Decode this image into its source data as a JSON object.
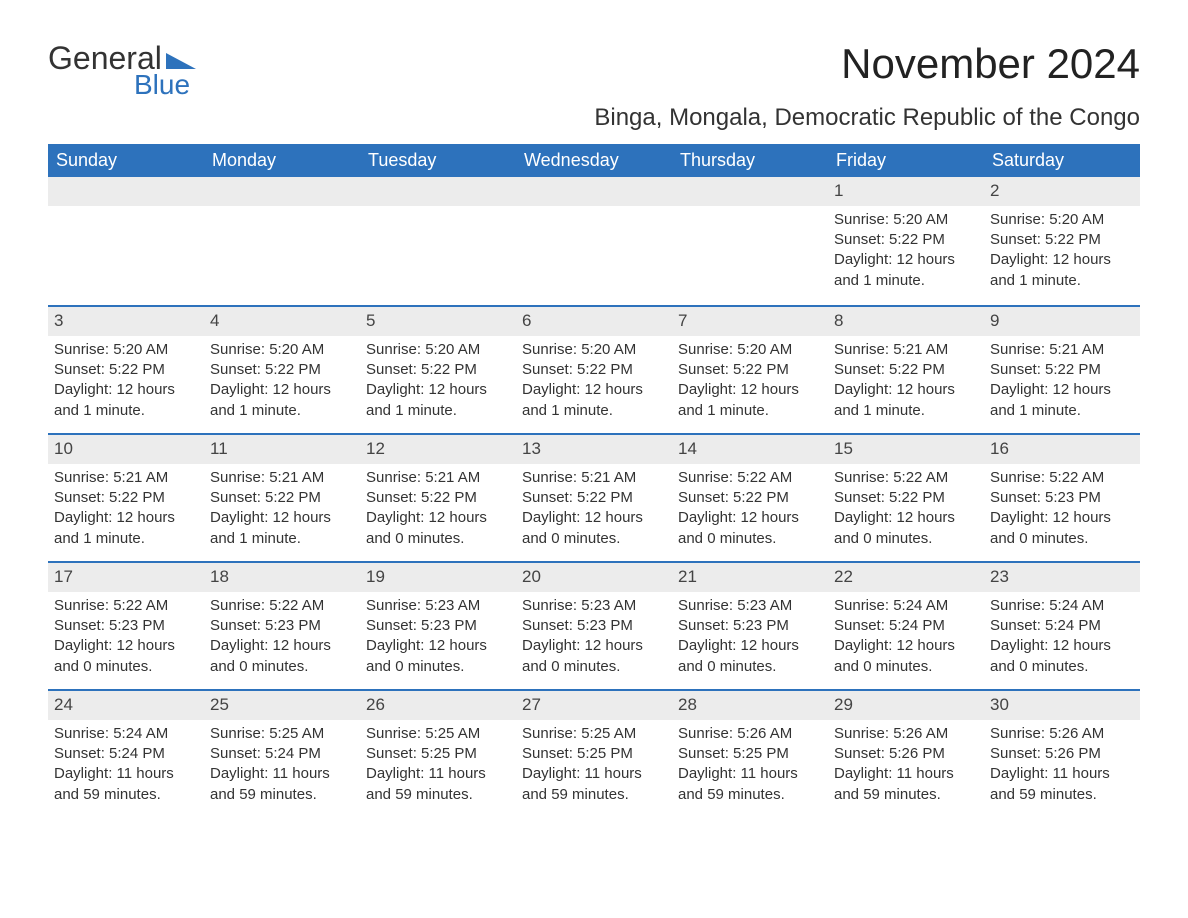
{
  "logo": {
    "text1": "General",
    "text2": "Blue",
    "triangle_color": "#2d72bc"
  },
  "title": "November 2024",
  "location": "Binga, Mongala, Democratic Republic of the Congo",
  "colors": {
    "header_bg": "#2d72bc",
    "header_text": "#ffffff",
    "daynum_bg": "#ececec",
    "daynum_border": "#2d72bc",
    "body_text": "#333333",
    "page_bg": "#ffffff"
  },
  "typography": {
    "title_fontsize": 42,
    "location_fontsize": 24,
    "day_header_fontsize": 18,
    "cell_fontsize": 15
  },
  "day_headers": [
    "Sunday",
    "Monday",
    "Tuesday",
    "Wednesday",
    "Thursday",
    "Friday",
    "Saturday"
  ],
  "labels": {
    "sunrise": "Sunrise:",
    "sunset": "Sunset:",
    "daylight": "Daylight:"
  },
  "weeks": [
    [
      null,
      null,
      null,
      null,
      null,
      {
        "n": "1",
        "sunrise": "5:20 AM",
        "sunset": "5:22 PM",
        "daylight": "12 hours and 1 minute."
      },
      {
        "n": "2",
        "sunrise": "5:20 AM",
        "sunset": "5:22 PM",
        "daylight": "12 hours and 1 minute."
      }
    ],
    [
      {
        "n": "3",
        "sunrise": "5:20 AM",
        "sunset": "5:22 PM",
        "daylight": "12 hours and 1 minute."
      },
      {
        "n": "4",
        "sunrise": "5:20 AM",
        "sunset": "5:22 PM",
        "daylight": "12 hours and 1 minute."
      },
      {
        "n": "5",
        "sunrise": "5:20 AM",
        "sunset": "5:22 PM",
        "daylight": "12 hours and 1 minute."
      },
      {
        "n": "6",
        "sunrise": "5:20 AM",
        "sunset": "5:22 PM",
        "daylight": "12 hours and 1 minute."
      },
      {
        "n": "7",
        "sunrise": "5:20 AM",
        "sunset": "5:22 PM",
        "daylight": "12 hours and 1 minute."
      },
      {
        "n": "8",
        "sunrise": "5:21 AM",
        "sunset": "5:22 PM",
        "daylight": "12 hours and 1 minute."
      },
      {
        "n": "9",
        "sunrise": "5:21 AM",
        "sunset": "5:22 PM",
        "daylight": "12 hours and 1 minute."
      }
    ],
    [
      {
        "n": "10",
        "sunrise": "5:21 AM",
        "sunset": "5:22 PM",
        "daylight": "12 hours and 1 minute."
      },
      {
        "n": "11",
        "sunrise": "5:21 AM",
        "sunset": "5:22 PM",
        "daylight": "12 hours and 1 minute."
      },
      {
        "n": "12",
        "sunrise": "5:21 AM",
        "sunset": "5:22 PM",
        "daylight": "12 hours and 0 minutes."
      },
      {
        "n": "13",
        "sunrise": "5:21 AM",
        "sunset": "5:22 PM",
        "daylight": "12 hours and 0 minutes."
      },
      {
        "n": "14",
        "sunrise": "5:22 AM",
        "sunset": "5:22 PM",
        "daylight": "12 hours and 0 minutes."
      },
      {
        "n": "15",
        "sunrise": "5:22 AM",
        "sunset": "5:22 PM",
        "daylight": "12 hours and 0 minutes."
      },
      {
        "n": "16",
        "sunrise": "5:22 AM",
        "sunset": "5:23 PM",
        "daylight": "12 hours and 0 minutes."
      }
    ],
    [
      {
        "n": "17",
        "sunrise": "5:22 AM",
        "sunset": "5:23 PM",
        "daylight": "12 hours and 0 minutes."
      },
      {
        "n": "18",
        "sunrise": "5:22 AM",
        "sunset": "5:23 PM",
        "daylight": "12 hours and 0 minutes."
      },
      {
        "n": "19",
        "sunrise": "5:23 AM",
        "sunset": "5:23 PM",
        "daylight": "12 hours and 0 minutes."
      },
      {
        "n": "20",
        "sunrise": "5:23 AM",
        "sunset": "5:23 PM",
        "daylight": "12 hours and 0 minutes."
      },
      {
        "n": "21",
        "sunrise": "5:23 AM",
        "sunset": "5:23 PM",
        "daylight": "12 hours and 0 minutes."
      },
      {
        "n": "22",
        "sunrise": "5:24 AM",
        "sunset": "5:24 PM",
        "daylight": "12 hours and 0 minutes."
      },
      {
        "n": "23",
        "sunrise": "5:24 AM",
        "sunset": "5:24 PM",
        "daylight": "12 hours and 0 minutes."
      }
    ],
    [
      {
        "n": "24",
        "sunrise": "5:24 AM",
        "sunset": "5:24 PM",
        "daylight": "11 hours and 59 minutes."
      },
      {
        "n": "25",
        "sunrise": "5:25 AM",
        "sunset": "5:24 PM",
        "daylight": "11 hours and 59 minutes."
      },
      {
        "n": "26",
        "sunrise": "5:25 AM",
        "sunset": "5:25 PM",
        "daylight": "11 hours and 59 minutes."
      },
      {
        "n": "27",
        "sunrise": "5:25 AM",
        "sunset": "5:25 PM",
        "daylight": "11 hours and 59 minutes."
      },
      {
        "n": "28",
        "sunrise": "5:26 AM",
        "sunset": "5:25 PM",
        "daylight": "11 hours and 59 minutes."
      },
      {
        "n": "29",
        "sunrise": "5:26 AM",
        "sunset": "5:26 PM",
        "daylight": "11 hours and 59 minutes."
      },
      {
        "n": "30",
        "sunrise": "5:26 AM",
        "sunset": "5:26 PM",
        "daylight": "11 hours and 59 minutes."
      }
    ]
  ]
}
